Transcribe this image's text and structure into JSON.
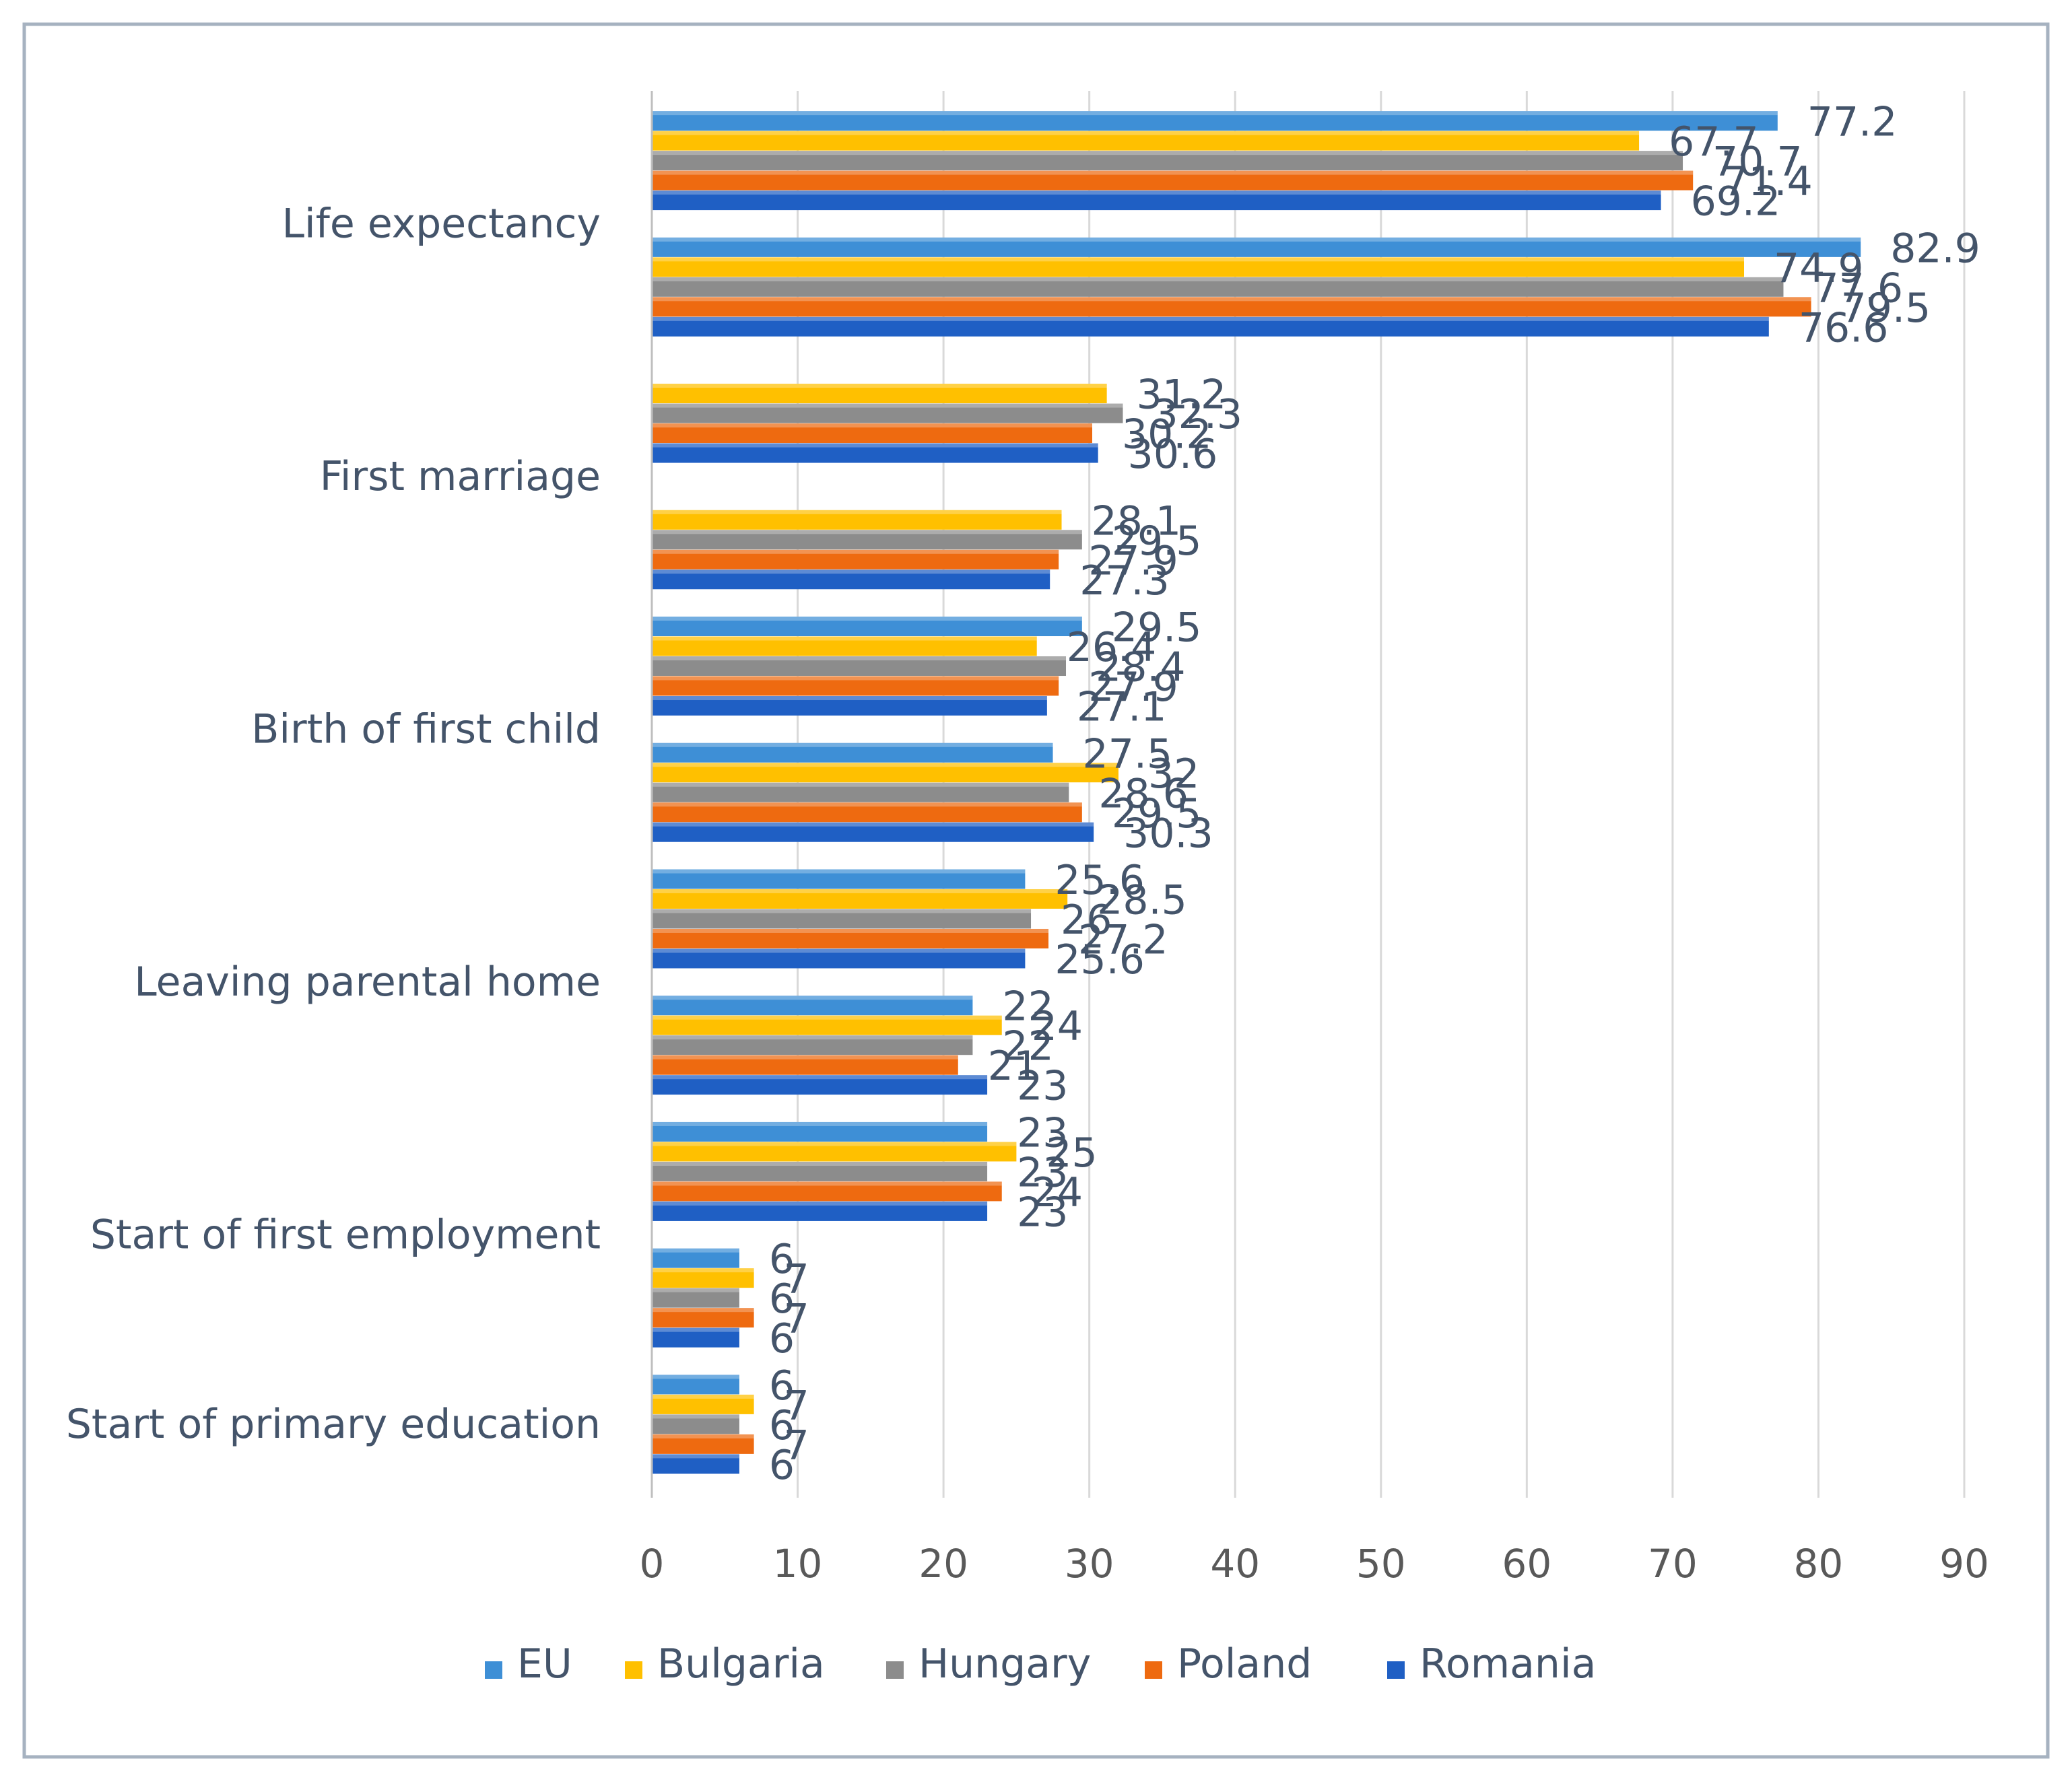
{
  "chart_data": {
    "type": "bar",
    "orientation": "horizontal",
    "title": "",
    "xlabel": "",
    "ylabel": "",
    "xlim": [
      0,
      90
    ],
    "ticks": [
      "0",
      "10",
      "20",
      "30",
      "40",
      "50",
      "60",
      "70",
      "80",
      "90"
    ],
    "grid": true,
    "legend_position": "bottom",
    "categories": [
      "Life expectancy",
      "First marriage",
      "Birth of first child",
      "Leaving parental home",
      "Start of first employment",
      "Start of primary education"
    ],
    "series_names": [
      "EU",
      "Bulgaria",
      "Hungary",
      "Poland",
      "Romania"
    ],
    "colors": [
      "#3e8fd6",
      "#ffc000",
      "#8c8c8c",
      "#ee6a10",
      "#1f5fc4"
    ],
    "groups": [
      {
        "category": "Life expectancy",
        "values": [
          77.2,
          67.7,
          70.7,
          71.4,
          69.2
        ],
        "labels": [
          "77.2",
          "67.7",
          "70.7",
          "71.4",
          "69.2"
        ]
      },
      {
        "category": "Life expectancy",
        "values": [
          82.9,
          74.9,
          77.6,
          79.5,
          76.6
        ],
        "labels": [
          "82.9",
          "74.9",
          "77.6",
          "79.5",
          "76.6"
        ]
      },
      {
        "category": "First marriage",
        "values": [
          null,
          31.2,
          32.3,
          30.2,
          30.6
        ],
        "labels": [
          "",
          "31.2",
          "32.3",
          "30.2",
          "30.6"
        ]
      },
      {
        "category": "First marriage",
        "values": [
          null,
          28.1,
          29.5,
          27.9,
          27.3
        ],
        "labels": [
          "",
          "28.1",
          "29.5",
          "27.9",
          "27.3"
        ]
      },
      {
        "category": "Birth of first child",
        "values": [
          29.5,
          26.4,
          28.4,
          27.9,
          27.1
        ],
        "labels": [
          "29.5",
          "26.4",
          "28.4",
          "27.9",
          "27.1"
        ]
      },
      {
        "category": "Birth of first child",
        "values": [
          27.5,
          32,
          28.6,
          29.5,
          30.3
        ],
        "labels": [
          "27.5",
          "32",
          "28.6",
          "29.5",
          "30.3"
        ]
      },
      {
        "category": "Leaving parental home",
        "values": [
          25.6,
          28.5,
          26,
          27.2,
          25.6
        ],
        "labels": [
          "25.6",
          "28.5",
          "26",
          "27.2",
          "25.6"
        ]
      },
      {
        "category": "Leaving parental home",
        "values": [
          22,
          24,
          22,
          21,
          23
        ],
        "labels": [
          "22",
          "24",
          "22",
          "21",
          "23"
        ]
      },
      {
        "category": "Start of first employment",
        "values": [
          23,
          25,
          23,
          24,
          23
        ],
        "labels": [
          "23",
          "25",
          "23",
          "24",
          "23"
        ]
      },
      {
        "category": "Start of first employment",
        "values": [
          6,
          7,
          6,
          7,
          6
        ],
        "labels": [
          "6",
          "7",
          "6",
          "7",
          "6"
        ]
      },
      {
        "category": "Start of primary education",
        "values": [
          6,
          7,
          6,
          7,
          6
        ],
        "labels": [
          "6",
          "7",
          "6",
          "7",
          "6"
        ]
      }
    ]
  }
}
